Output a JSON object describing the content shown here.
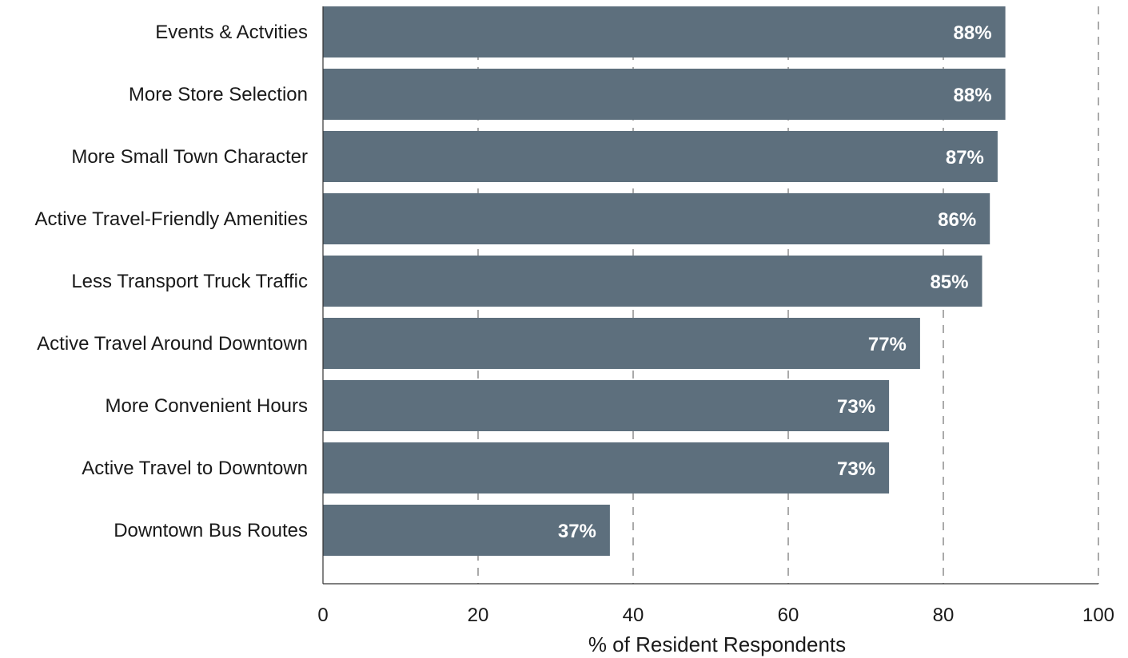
{
  "chart_data": {
    "type": "bar",
    "orientation": "horizontal",
    "categories": [
      "Events & Actvities",
      "More Store Selection",
      "More Small Town Character",
      "Active Travel-Friendly Amenities",
      "Less Transport Truck Traffic",
      "Active Travel Around Downtown",
      "More Convenient Hours",
      "Active Travel to Downtown",
      "Downtown Bus Routes"
    ],
    "values": [
      88,
      88,
      87,
      86,
      85,
      77,
      73,
      73,
      37
    ],
    "value_labels": [
      "88%",
      "88%",
      "87%",
      "86%",
      "85%",
      "77%",
      "73%",
      "73%",
      "37%"
    ],
    "title": "",
    "xlabel": "% of Resident Respondents",
    "ylabel": "",
    "xlim": [
      0,
      100
    ],
    "xticks": [
      0,
      20,
      40,
      60,
      80,
      100
    ],
    "xtick_labels": [
      "0",
      "20",
      "40",
      "60",
      "80",
      "100"
    ],
    "grid": "vertical dashed",
    "legend": "none",
    "bar_color": "#5d6f7d"
  }
}
